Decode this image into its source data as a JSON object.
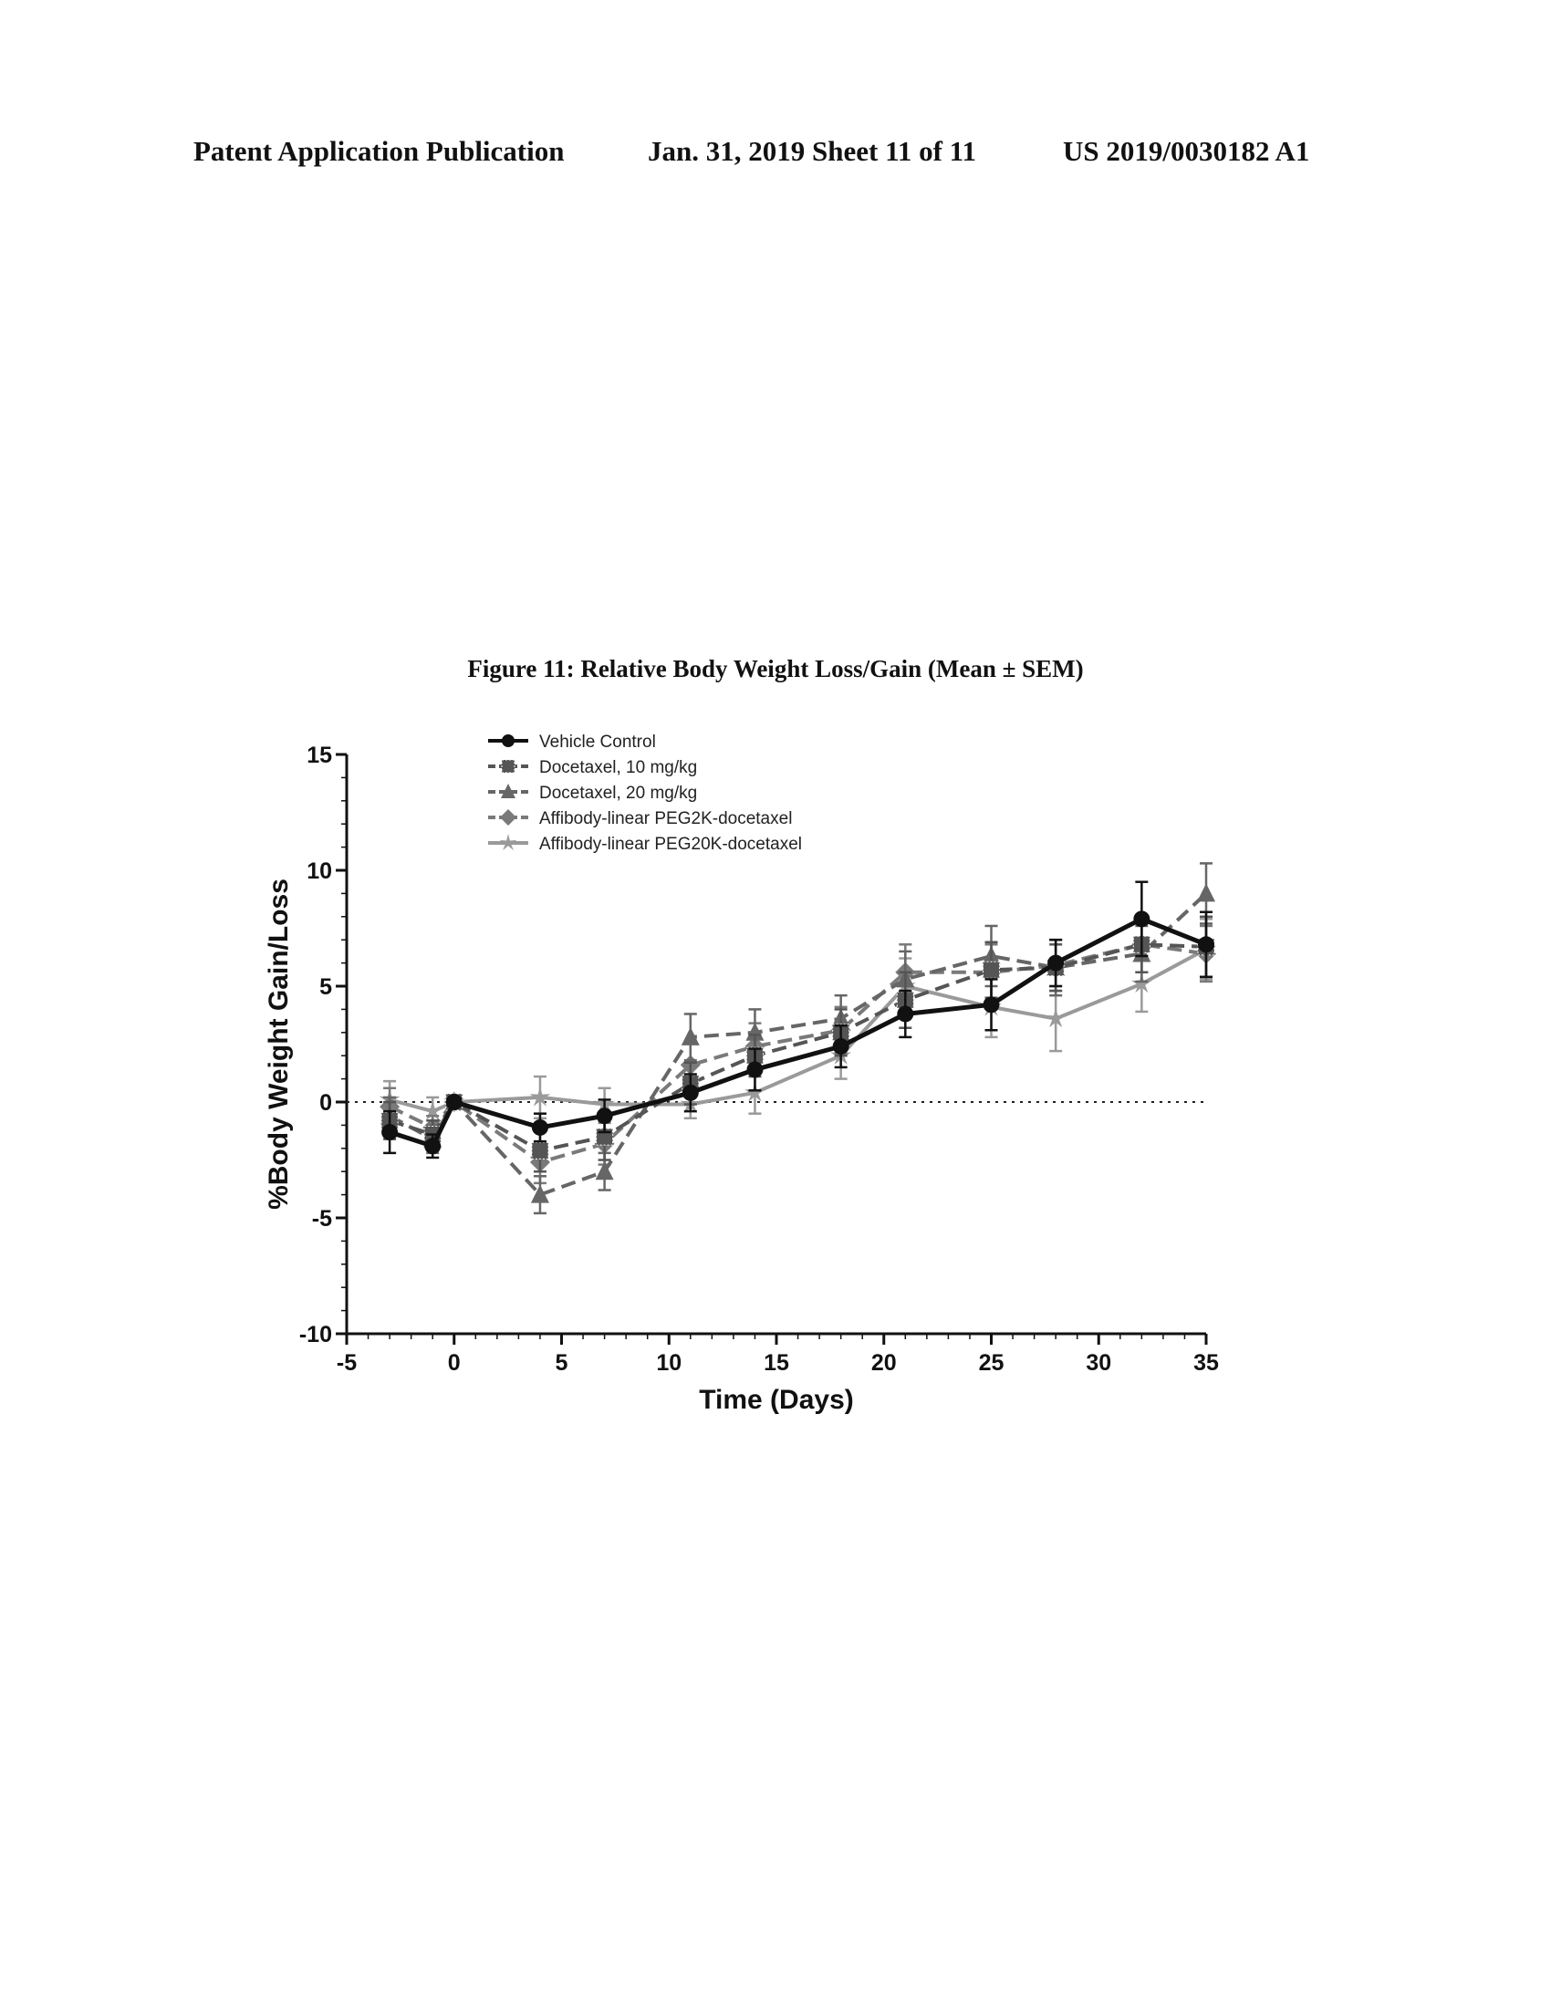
{
  "header": {
    "left": "Patent Application Publication",
    "date_sheet": "Jan. 31, 2019  Sheet 11 of 11",
    "number": "US 2019/0030182 A1"
  },
  "figure_title": "Figure 11: Relative Body Weight Loss/Gain (Mean ± SEM)",
  "chart_data": {
    "type": "line",
    "title": "Figure 11: Relative Body Weight Loss/Gain (Mean ± SEM)",
    "xlabel": "Time (Days)",
    "ylabel": "%Body Weight Gain/Loss",
    "xlim": [
      -5,
      35
    ],
    "ylim": [
      -10,
      15
    ],
    "xticks": [
      -5,
      0,
      5,
      10,
      15,
      20,
      25,
      30,
      35
    ],
    "xtick_labels": [
      "-5",
      "0",
      "5",
      "10",
      "15",
      "20",
      "25",
      "30",
      "35"
    ],
    "yticks": [
      -10,
      -5,
      0,
      5,
      10,
      15
    ],
    "ytick_labels": [
      "-10",
      "-5",
      "0",
      "5",
      "10",
      "15"
    ],
    "reference_line": 0,
    "legend_position": "top-left",
    "x": [
      -3,
      -1,
      0,
      4,
      7,
      11,
      14,
      18,
      21,
      25,
      28,
      32,
      35
    ],
    "series": [
      {
        "name": "Vehicle Control",
        "color": "#111111",
        "dash": "solid",
        "marker": "circle",
        "values": [
          -1.3,
          -1.9,
          0,
          -1.1,
          -0.6,
          0.4,
          1.4,
          2.4,
          3.8,
          4.2,
          6.0,
          7.9,
          6.8
        ],
        "errors": [
          0.9,
          0.5,
          0,
          0.6,
          0.7,
          0.8,
          0.9,
          0.9,
          1.0,
          1.1,
          1.0,
          1.6,
          1.4
        ]
      },
      {
        "name": "Docetaxel, 10 mg/kg",
        "color": "#555555",
        "dash": "dashed",
        "marker": "square",
        "values": [
          -0.8,
          -1.4,
          0,
          -2.1,
          -1.5,
          0.8,
          2.0,
          3.0,
          4.4,
          5.7,
          5.8,
          6.8,
          6.7
        ],
        "errors": [
          0.8,
          0.6,
          0,
          0.9,
          1.0,
          0.9,
          0.9,
          1.0,
          1.2,
          1.2,
          1.0,
          1.2,
          1.3
        ]
      },
      {
        "name": "Docetaxel, 20 mg/kg",
        "color": "#666666",
        "dash": "dashed",
        "marker": "triangle",
        "values": [
          -0.6,
          -1.6,
          0,
          -4.0,
          -3.0,
          2.8,
          3.0,
          3.6,
          5.3,
          6.3,
          5.8,
          6.4,
          9.0
        ],
        "errors": [
          0.8,
          0.6,
          0,
          0.8,
          0.8,
          1.0,
          1.0,
          1.0,
          1.2,
          1.3,
          1.2,
          1.2,
          1.3
        ]
      },
      {
        "name": "Affibody-linear PEG2K-docetaxel",
        "color": "#7a7a7a",
        "dash": "dashed",
        "marker": "diamond",
        "values": [
          -0.2,
          -1.1,
          0,
          -2.6,
          -1.8,
          1.6,
          2.4,
          3.1,
          5.6,
          5.6,
          5.9,
          6.8,
          6.4
        ],
        "errors": [
          0.8,
          0.5,
          0,
          0.9,
          0.9,
          1.0,
          1.0,
          1.0,
          1.2,
          1.2,
          1.1,
          1.2,
          1.2
        ]
      },
      {
        "name": "Affibody-linear PEG20K-docetaxel",
        "color": "#9a9a9a",
        "dash": "solid",
        "marker": "star",
        "values": [
          0.1,
          -0.4,
          0,
          0.2,
          -0.1,
          -0.1,
          0.4,
          2.0,
          5.0,
          4.1,
          3.6,
          5.1,
          6.6
        ],
        "errors": [
          0.8,
          0.6,
          0,
          0.9,
          0.7,
          0.6,
          0.9,
          1.0,
          1.2,
          1.3,
          1.4,
          1.2,
          1.3
        ]
      }
    ]
  }
}
